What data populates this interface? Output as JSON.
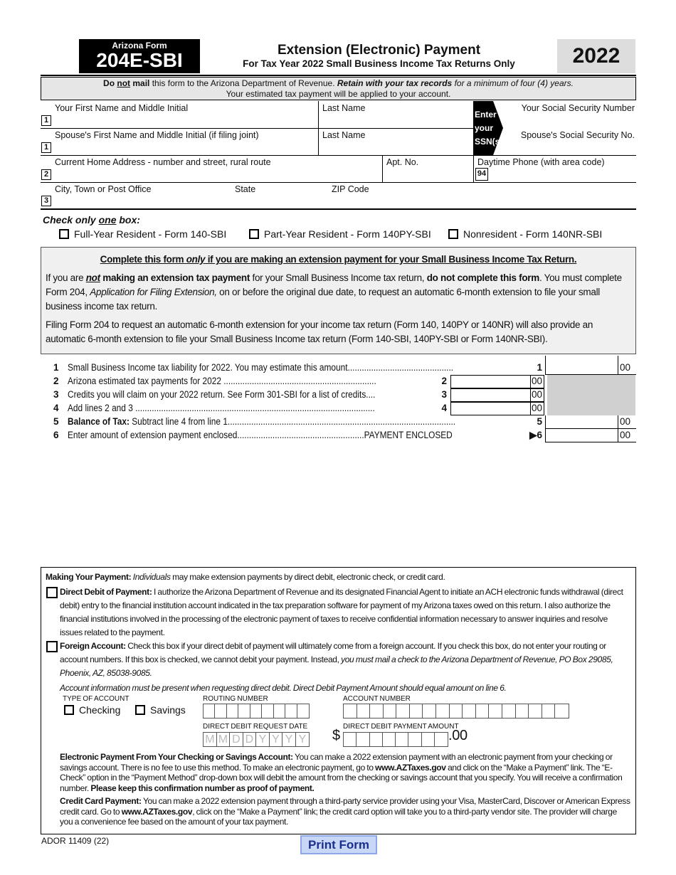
{
  "header": {
    "form_small": "Arizona Form",
    "form_number": "204E-SBI",
    "title": "Extension (Electronic) Payment",
    "subtitle": "For Tax Year 2022 Small Business Income Tax Returns Only",
    "year": "2022"
  },
  "notice": {
    "do": "Do ",
    "not": "not",
    "mail": " mail",
    "rest": " this form to the Arizona Department of Revenue.  ",
    "retain": "Retain with your tax records",
    "rest2": " for a minimum of four (4) years.",
    "line2": "Your estimated tax payment will be applied to your account."
  },
  "fields": {
    "first_name": "Your First Name and Middle Initial",
    "last_name": "Last Name",
    "ssn": "Your Social Security Number",
    "enter_ssn": [
      "Enter",
      "your",
      "SSN(s)."
    ],
    "spouse_first": "Spouse's First Name and Middle Initial (if filing joint)",
    "spouse_last": "Last Name",
    "spouse_ssn": "Spouse's Social Security No.",
    "address": "Current Home Address - number and street, rural route",
    "apt": "Apt. No.",
    "phone": "Daytime Phone (with area code)",
    "phone_code": "94",
    "city": "City, Town or Post Office",
    "state": "State",
    "zip": "ZIP Code",
    "n1": "1",
    "n2": "2",
    "n3": "3"
  },
  "residency": {
    "prompt_a": "Check only ",
    "prompt_b": "one",
    "prompt_c": " box:",
    "options": [
      "Full-Year Resident - Form 140-SBI",
      "Part-Year Resident - Form 140PY-SBI",
      "Nonresident - Form 140NR-SBI"
    ]
  },
  "instructions": {
    "heading_a": "Complete this form ",
    "heading_b": "only",
    "heading_c": " if you are making an extension payment for your Small Business Income Tax Return.",
    "p1_a": "If you are ",
    "p1_b": "not",
    "p1_c": " making an extension tax payment",
    "p1_d": " for your Small Business Income tax return, ",
    "p1_e": "do not complete this form",
    "p1_f": ".  You must complete Form 204, ",
    "p1_g": "Application for Filing Extension,",
    "p1_h": " on or before the original due date, to request an automatic 6-month extension to file your small business income tax return.",
    "p2": "Filing Form 204 to request an automatic 6-month extension for your income tax return (Form 140, 140PY or 140NR) will also provide an automatic 6-month extension to file your Small Business Income tax return (Form 140-SBI, 140PY-SBI or Form 140NR-SBI)."
  },
  "lines": [
    {
      "n": "1",
      "text": "Small Business Income tax liability for 2022.  You may estimate this amount.............................................",
      "ref": "1",
      "cents": "00"
    },
    {
      "n": "2",
      "text": "Arizona estimated tax payments for 2022 .................................................................",
      "ref": "2",
      "cents": "00"
    },
    {
      "n": "3",
      "text": "Credits you will claim on your 2022 return.  See Form 301-SBI for a list of credits....",
      "ref": "3",
      "cents": "00"
    },
    {
      "n": "4",
      "text": "Add lines 2 and 3 ......................................................................................................",
      "ref": "4",
      "cents": "00"
    },
    {
      "n": "5",
      "bold": "Balance of Tax:",
      "text": " Subtract line 4 from line 1.................................................................................................",
      "ref": "5",
      "cents": "00"
    },
    {
      "n": "6",
      "text": "Enter amount of extension payment enclosed......................................................PAYMENT ENCLOSED",
      "ref": "▶6",
      "cents": "00"
    }
  ],
  "payment": {
    "intro_b": "Making Your Payment:",
    "intro_i": "Individuals",
    "intro": " may make extension payments by direct debit, electronic check, or credit card.",
    "dd_b": "Direct Debit of Payment:",
    "dd": " I authorize the Arizona Department of Revenue and its designated Financial Agent to initiate an ACH electronic funds withdrawal (direct debit) entry to the financial institution account indicated in the tax preparation software for payment of my Arizona taxes owed on this return.  I also authorize the financial institutions involved in the processing of the electronic payment of taxes to receive confidential information necessary to answer inquiries and resolve issues related to the payment.",
    "fa_b": "Foreign Account:",
    "fa": " Check this box if your direct debit of payment will ultimately come from a foreign account.  If you check this box, do not enter your routing or account numbers.  If this box is checked, we cannot debit your payment.  Instead, ",
    "fa_i": "you must mail a check to the Arizona Department of Revenue, PO Box 29085, Phoenix, AZ, 85038-9085.",
    "acct_note": "Account information must be present when requesting direct debit.  Direct Debit Payment Amount should equal amount on line 6.",
    "type_label": "TYPE OF ACCOUNT",
    "checking": "Checking",
    "savings": "Savings",
    "routing_label": "ROUTING NUMBER",
    "account_label": "ACCOUNT NUMBER",
    "date_label": "DIRECT DEBIT REQUEST DATE",
    "date_placeholder": [
      "M",
      "M",
      "D",
      "D",
      "Y",
      "Y",
      "Y",
      "Y"
    ],
    "amount_label": "DIRECT DEBIT PAYMENT AMOUNT",
    "dollar": "$",
    "cents": ".00",
    "ep_b": "Electronic Payment From Your Checking or Savings Account:",
    "ep1": " You can make a 2022 extension payment with an electronic payment from your checking or savings account.  There is no fee to use this method.  To make an electronic payment, go to ",
    "ep_link": "www.AZTaxes.gov",
    "ep2": " and click on the “Make a Payment” link. The “E-Check” option in the “Payment Method” drop-down box will debit the amount from the checking or savings account that you specify.  You will receive a confirmation number.  ",
    "ep_b2": "Please keep this confirmation number as proof of payment.",
    "cc_b": "Credit Card Payment:",
    "cc1": " You can make a 2022 extension payment through a third-party service provider using your Visa, MasterCard, Discover or American Express credit card.  Go to ",
    "cc_link": "www.AZTaxes.gov",
    "cc2": ", click on the “Make a Payment” link; the credit card option will take you to a third-party vendor site.  The provider will charge you a convenience fee based on the amount of your tax payment."
  },
  "footer": {
    "code": "ADOR 11409 (22)",
    "print": "Print Form"
  },
  "colors": {
    "notice_bg": "#e6e6e6",
    "print_bg": "#c9d7f7",
    "shade": "#d0d0d0"
  }
}
